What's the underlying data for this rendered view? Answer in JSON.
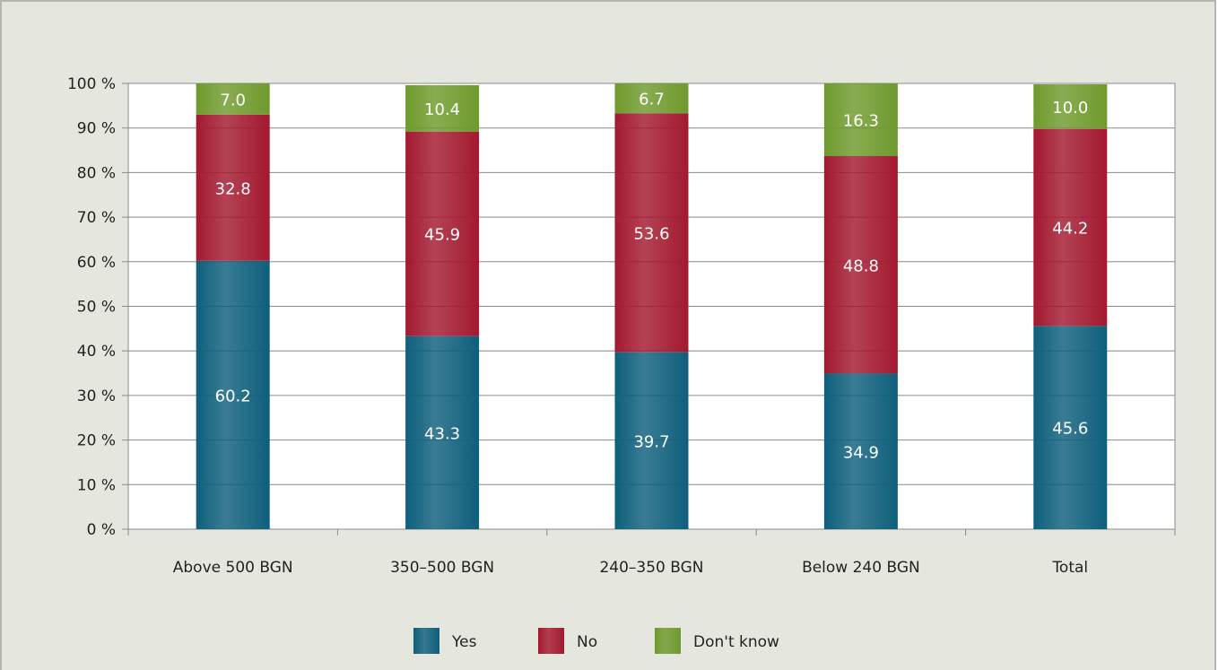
{
  "chart_data": {
    "type": "bar",
    "stacked": true,
    "categories": [
      "Above 500 BGN",
      "350–500 BGN",
      "240–350 BGN",
      "Below 240 BGN",
      "Total"
    ],
    "series": [
      {
        "name": "Yes",
        "values": [
          60.2,
          43.3,
          39.7,
          34.9,
          45.6
        ],
        "labels": [
          "60.2",
          "43.3",
          "39.7",
          "34.9",
          "45.6"
        ],
        "color": "#0e5f7c"
      },
      {
        "name": "No",
        "values": [
          32.8,
          45.9,
          53.6,
          48.8,
          44.2
        ],
        "labels": [
          "32.8",
          "45.9",
          "53.6",
          "48.8",
          "44.2"
        ],
        "color": "#a3192f"
      },
      {
        "name": "Don't know",
        "values": [
          7.0,
          10.4,
          6.7,
          16.3,
          10.0
        ],
        "labels": [
          "7.0",
          "10.4",
          "6.7",
          "16.3",
          "10.0"
        ],
        "color": "#6e9a2c"
      }
    ],
    "yticks": [
      "0 %",
      "10 %",
      "20 %",
      "30 %",
      "40 %",
      "50 %",
      "60 %",
      "70 %",
      "80 %",
      "90 %",
      "100 %"
    ],
    "ylim": [
      0,
      100
    ],
    "grid": true,
    "legend": "bottom-center"
  }
}
